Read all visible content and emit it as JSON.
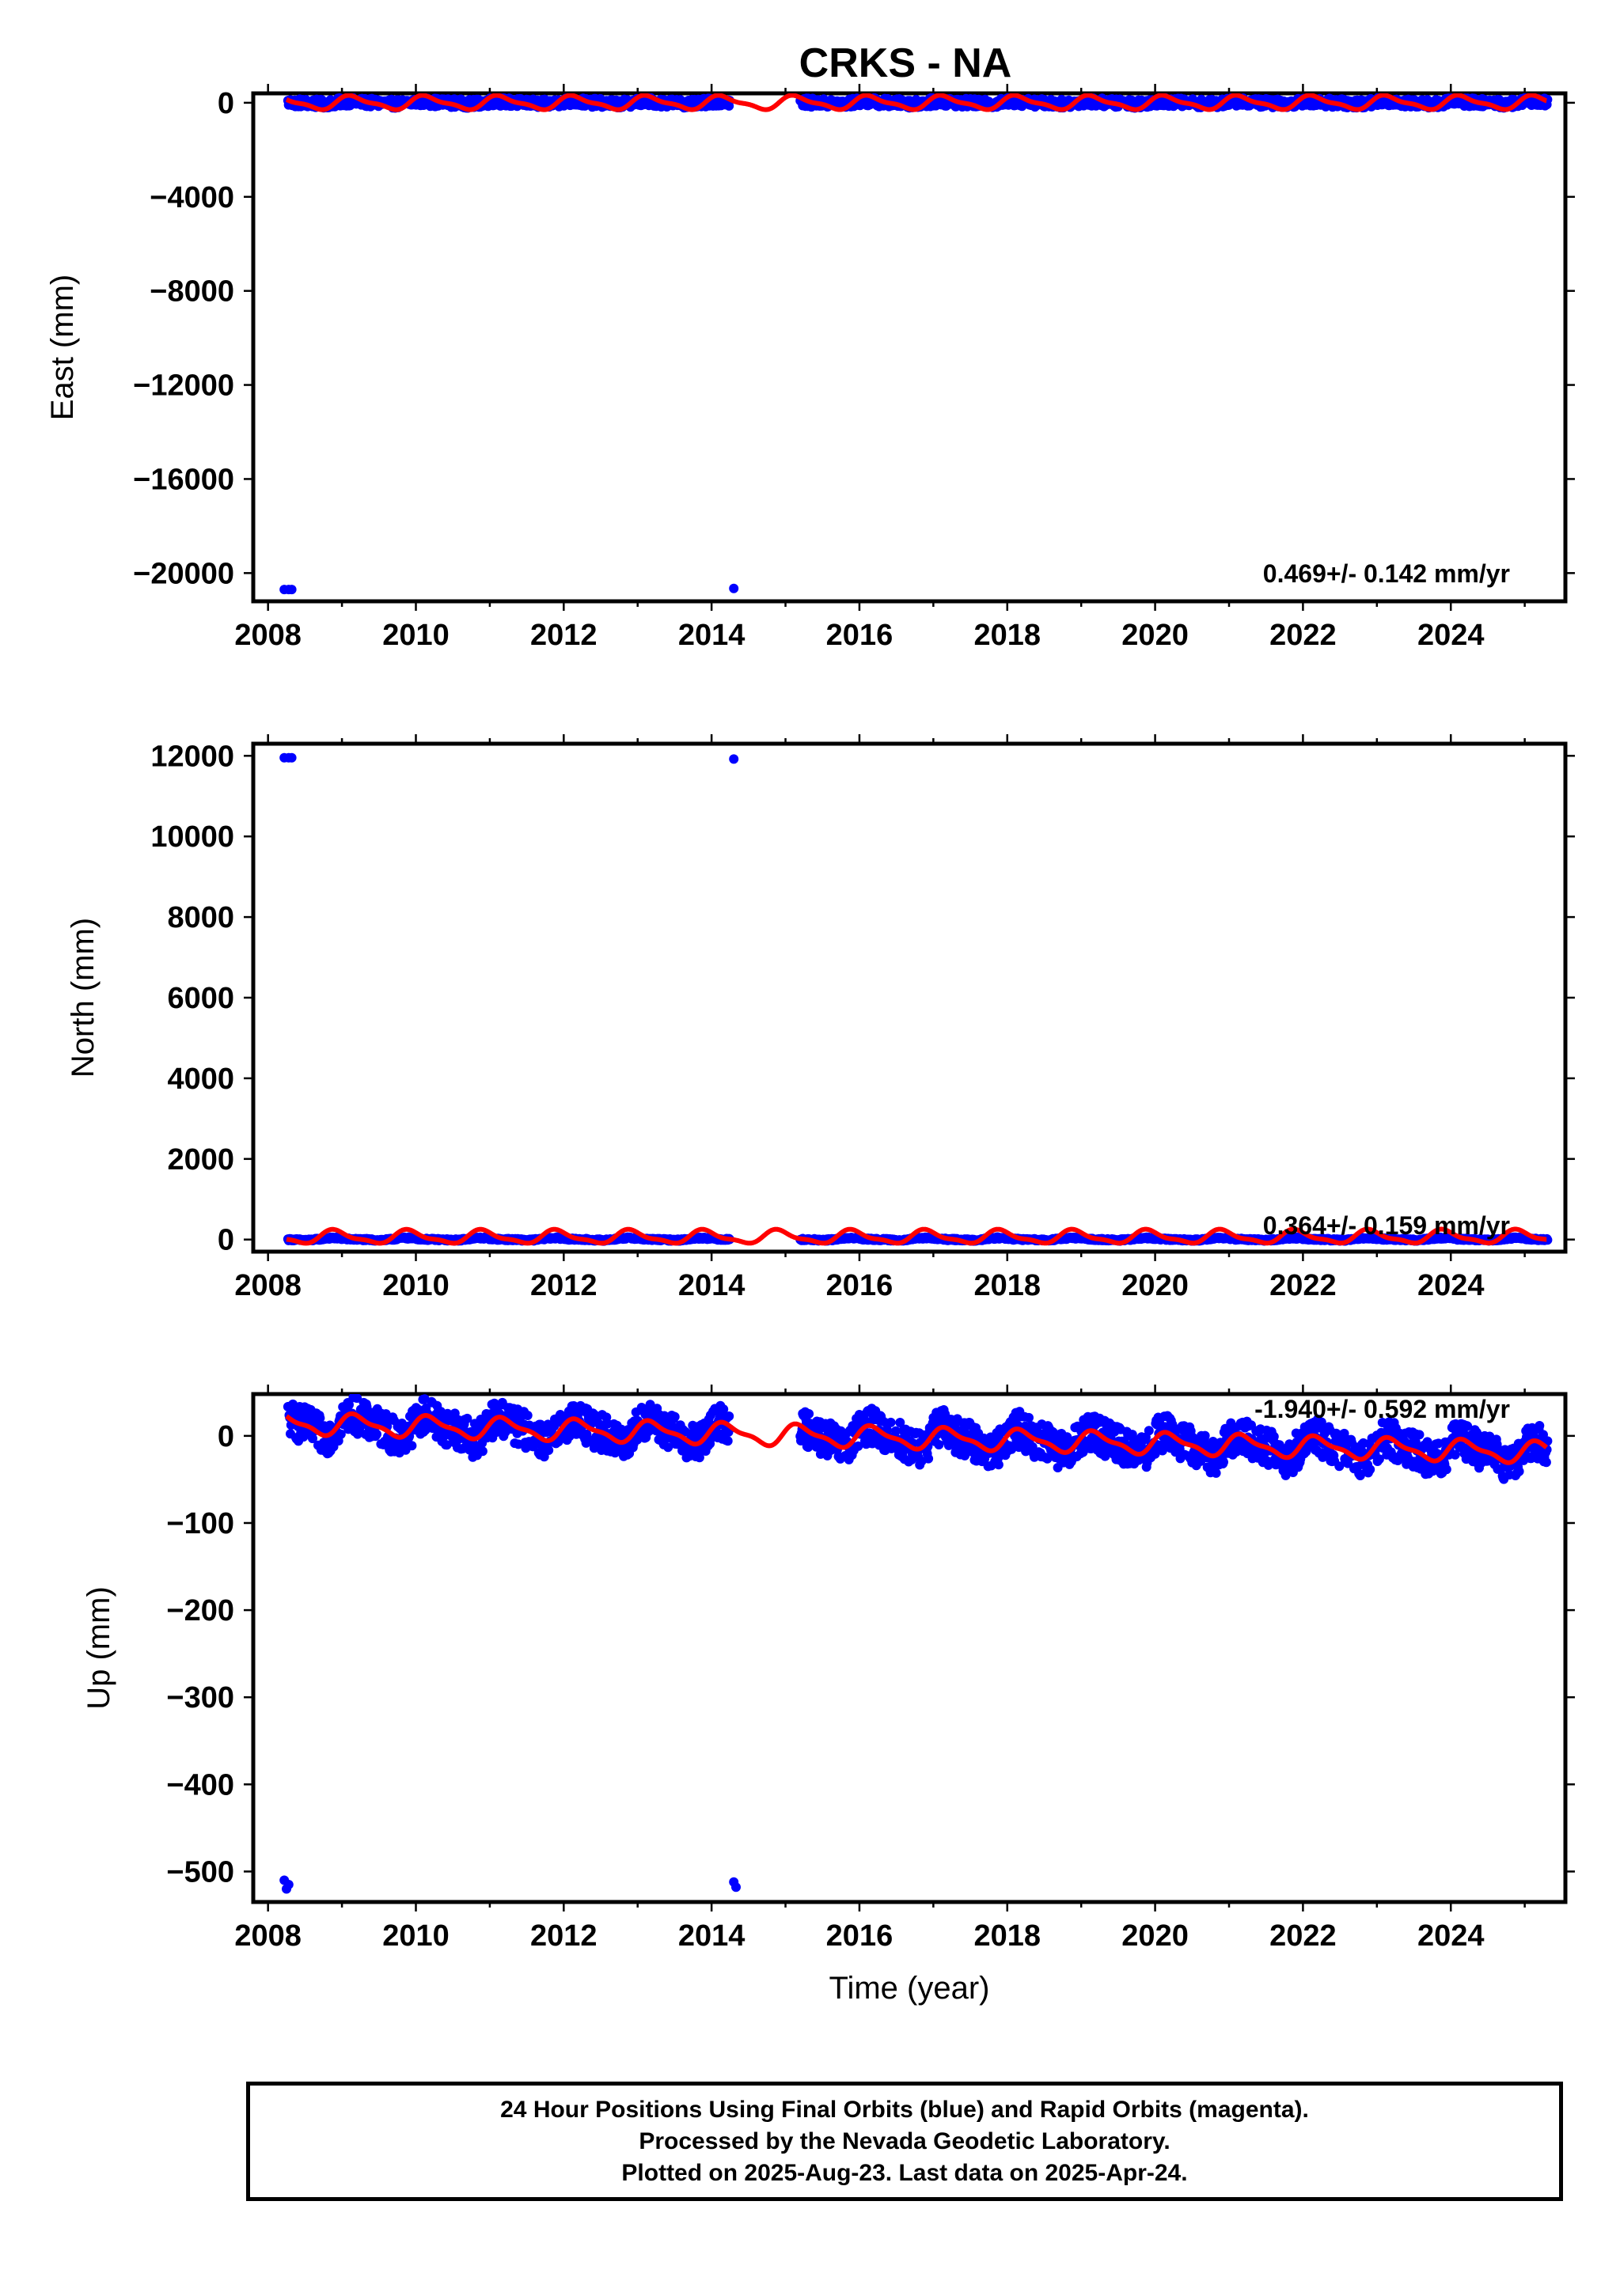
{
  "title": "CRKS - NA",
  "colors": {
    "final_orbits": "#0000ff",
    "model_fit": "#ff0000",
    "axes": "#000000"
  },
  "footer": {
    "line1": "24 Hour Positions Using Final Orbits (blue) and Rapid Orbits (magenta).",
    "line2": "Processed by the Nevada Geodetic Laboratory.",
    "line3": "Plotted on 2025-Aug-23. Last data on 2025-Apr-24."
  },
  "chart_data": [
    {
      "type": "scatter",
      "ylabel": "East (mm)",
      "xlabel": "",
      "xlim": [
        2007.8,
        2025.55
      ],
      "ylim": [
        -21200,
        400
      ],
      "xticks": [
        2008,
        2010,
        2012,
        2014,
        2016,
        2018,
        2020,
        2022,
        2024
      ],
      "ytick_labels": [
        "0",
        "−4000",
        "−8000",
        "−12000",
        "−16000",
        "−20000"
      ],
      "yticks": [
        0,
        -4000,
        -8000,
        -12000,
        -16000,
        -20000
      ],
      "rate_label": "0.469+/- 0.142 mm/yr",
      "daily_positions": {
        "segments": [
          [
            2008.27,
            2014.25
          ],
          [
            2015.2,
            2025.31
          ]
        ],
        "typical_range": [
          -300,
          300
        ],
        "outliers": [
          {
            "x": 2008.22,
            "y": -20700
          },
          {
            "x": 2008.28,
            "y": -20700
          },
          {
            "x": 2008.32,
            "y": -20700
          },
          {
            "x": 2014.3,
            "y": -20650
          }
        ]
      },
      "model": {
        "start": 2008.25,
        "end": 2025.3,
        "intercept": 0,
        "rate": 0.469,
        "seasonal_amplitude": 260,
        "phase": 0.6
      }
    },
    {
      "type": "scatter",
      "ylabel": "North (mm)",
      "xlabel": "",
      "xlim": [
        2007.8,
        2025.55
      ],
      "ylim": [
        -300,
        12300
      ],
      "xticks": [
        2008,
        2010,
        2012,
        2014,
        2016,
        2018,
        2020,
        2022,
        2024
      ],
      "ytick_labels": [
        "0",
        "2000",
        "4000",
        "6000",
        "8000",
        "10000",
        "12000"
      ],
      "yticks": [
        0,
        2000,
        4000,
        6000,
        8000,
        10000,
        12000
      ],
      "rate_label": "0.364+/- 0.159 mm/yr",
      "daily_positions": {
        "segments": [
          [
            2008.27,
            2014.25
          ],
          [
            2015.2,
            2025.31
          ]
        ],
        "typical_range": [
          -40,
          40
        ],
        "outliers": [
          {
            "x": 2008.22,
            "y": 11950
          },
          {
            "x": 2008.28,
            "y": 11950
          },
          {
            "x": 2008.32,
            "y": 11950
          },
          {
            "x": 2014.3,
            "y": 11920
          }
        ]
      },
      "model": {
        "start": 2008.25,
        "end": 2025.3,
        "intercept": 60,
        "rate": 0.364,
        "seasonal_amplitude": 150,
        "phase": 2.1
      }
    },
    {
      "type": "scatter",
      "ylabel": "Up (mm)",
      "xlabel": "Time (year)",
      "xlim": [
        2007.8,
        2025.55
      ],
      "ylim": [
        -535,
        48
      ],
      "xticks": [
        2008,
        2010,
        2012,
        2014,
        2016,
        2018,
        2020,
        2022,
        2024
      ],
      "ytick_labels": [
        "0",
        "−100",
        "−200",
        "−300",
        "−400",
        "−500"
      ],
      "yticks": [
        0,
        -100,
        -200,
        -300,
        -400,
        -500
      ],
      "rate_label": "-1.940+/- 0.592 mm/yr",
      "daily_positions": {
        "segments": [
          [
            2008.27,
            2014.25
          ],
          [
            2015.2,
            2025.31
          ]
        ],
        "typical_range": [
          -35,
          35
        ],
        "outliers": [
          {
            "x": 2008.22,
            "y": -510
          },
          {
            "x": 2008.25,
            "y": -520
          },
          {
            "x": 2008.28,
            "y": -515
          },
          {
            "x": 2014.3,
            "y": -512
          },
          {
            "x": 2014.33,
            "y": -518
          }
        ]
      },
      "model": {
        "start": 2008.25,
        "end": 2025.3,
        "intercept": 14,
        "rate": -1.94,
        "seasonal_amplitude": 11,
        "phase": 0.3
      }
    }
  ]
}
